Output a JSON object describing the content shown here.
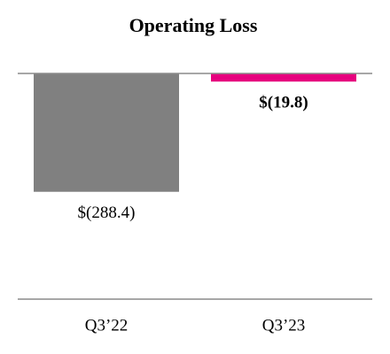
{
  "chart_data": {
    "type": "bar",
    "title": "Operating Loss",
    "categories": [
      "Q3’22",
      "Q3’23"
    ],
    "values": [
      -288.4,
      -19.8
    ],
    "value_labels": [
      "$(288.4)",
      "$(19.8)"
    ],
    "colors": [
      "#808080",
      "#e6007e"
    ],
    "ylim": [
      -550,
      0
    ]
  }
}
